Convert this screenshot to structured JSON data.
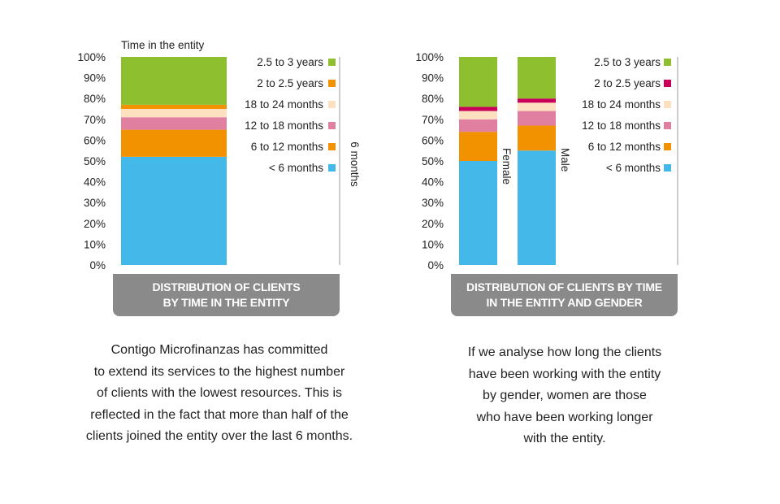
{
  "charts": [
    {
      "banner": "DISTRIBUTION OF CLIENTS\nBY TIME IN THE ENTITY",
      "paragraph": "Contigo Microfinanzas has committed\nto extend its services to the highest number\nof clients with the lowest resources. This is\nreflected in the fact that more than half of the\nclients  joined the entity over the last 6 months."
    },
    {
      "banner": "DISTRIBUTION OF CLIENTS BY TIME\nIN THE ENTITY AND GENDER",
      "paragraph": "If we analyse how long the clients\nhave been working with the entity\nby gender, women are those\nwho have been working longer\nwith the entity."
    }
  ],
  "chart_data": [
    {
      "type": "bar",
      "stacked": true,
      "title": "Time in the entity",
      "side_label": "6 months",
      "y_ticks": [
        "0%",
        "10%",
        "20%",
        "30%",
        "40%",
        "50%",
        "60%",
        "70%",
        "80%",
        "90%",
        "100%"
      ],
      "ylim": [
        0,
        100
      ],
      "categories": [
        ""
      ],
      "series": [
        {
          "name": "< 6 months",
          "color": "#45b8ea",
          "values": [
            52
          ]
        },
        {
          "name": "6 to 12 months",
          "color": "#f39200",
          "values": [
            13
          ]
        },
        {
          "name": "12 to 18 months",
          "color": "#e07fa0",
          "values": [
            6
          ]
        },
        {
          "name": "18 to 24 months",
          "color": "#fde0c0",
          "values": [
            4
          ]
        },
        {
          "name": "2 to 2.5 years",
          "color": "#f39200",
          "values": [
            2
          ]
        },
        {
          "name": "2.5 to 3 years",
          "color": "#8dbf2f",
          "values": [
            23
          ]
        }
      ],
      "legend_order": [
        "2.5 to 3 years",
        "2 to 2.5 years",
        "18 to 24 months",
        "12 to 18 months",
        "6 to 12 months",
        "< 6 months"
      ],
      "legend_position": "right",
      "grid": false
    },
    {
      "type": "bar",
      "stacked": true,
      "title": "",
      "y_ticks": [
        "0%",
        "10%",
        "20%",
        "30%",
        "40%",
        "50%",
        "60%",
        "70%",
        "80%",
        "90%",
        "100%"
      ],
      "ylim": [
        0,
        100
      ],
      "categories": [
        "Female",
        "Male"
      ],
      "series": [
        {
          "name": "< 6 months",
          "color": "#45b8ea",
          "values": [
            50,
            55
          ]
        },
        {
          "name": "6 to 12 months",
          "color": "#f39200",
          "values": [
            14,
            12
          ]
        },
        {
          "name": "12 to 18 months",
          "color": "#e07fa0",
          "values": [
            6,
            7
          ]
        },
        {
          "name": "18 to 24 months",
          "color": "#fde0c0",
          "values": [
            4,
            4
          ]
        },
        {
          "name": "2 to 2.5 years",
          "color": "#c8005a",
          "values": [
            2,
            2
          ]
        },
        {
          "name": "2.5 to 3 years",
          "color": "#8dbf2f",
          "values": [
            24,
            20
          ]
        }
      ],
      "legend_order": [
        "2.5 to 3 years",
        "2 to 2.5 years",
        "18 to 24 months",
        "12 to 18 months",
        "6 to 12 months",
        "< 6 months"
      ],
      "legend_position": "right",
      "grid": false
    }
  ]
}
